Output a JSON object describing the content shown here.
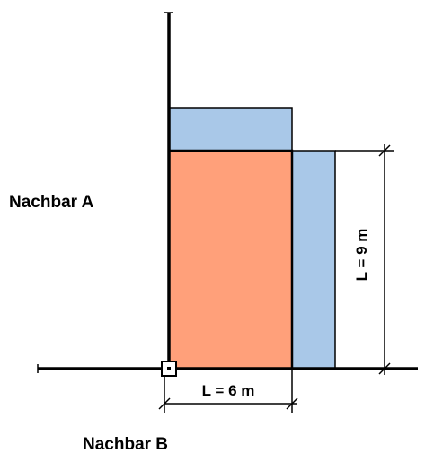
{
  "labels": {
    "neighbor_a": "Nachbar A",
    "neighbor_b": "Nachbar B",
    "width_dim": "L = 6 m",
    "height_dim": "L = 9 m"
  },
  "colors": {
    "building": "#FFA07A",
    "setback_area": "#A9C8E8",
    "line": "#000000"
  }
}
